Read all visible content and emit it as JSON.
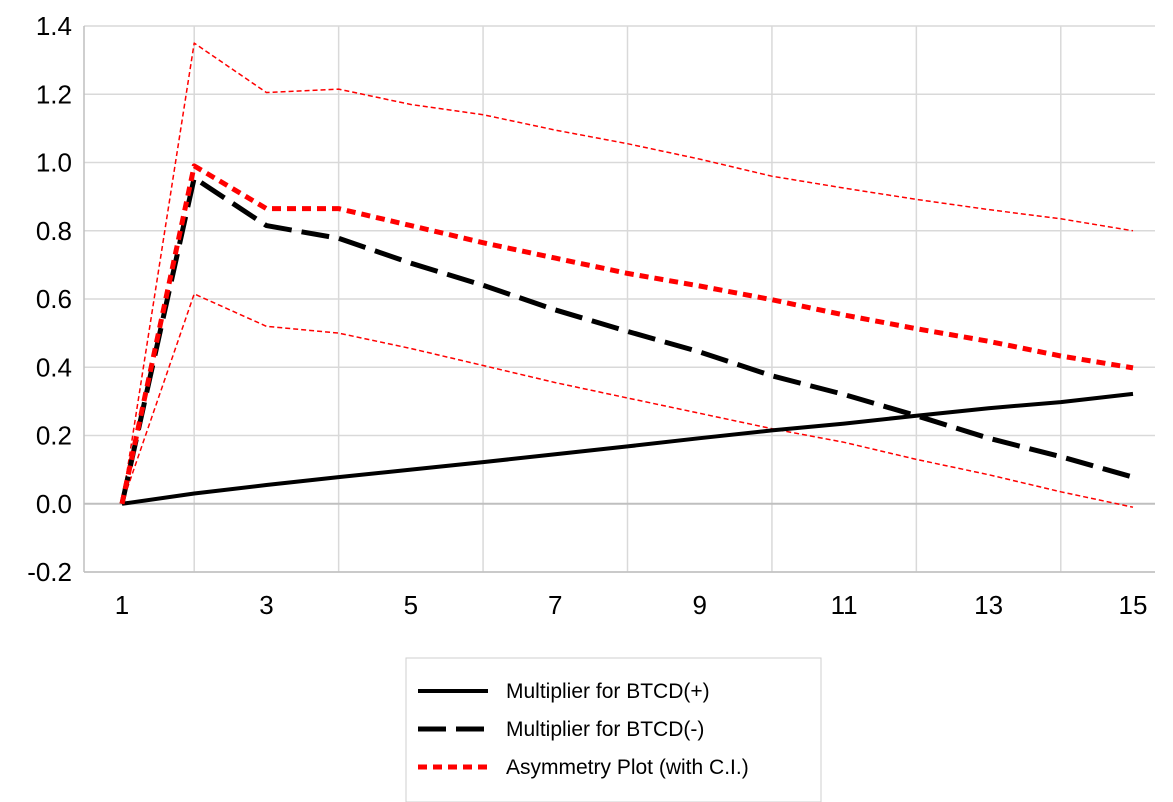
{
  "chart_data": {
    "type": "line",
    "title": "",
    "xlabel": "",
    "ylabel": "",
    "x": [
      1,
      2,
      3,
      4,
      5,
      6,
      7,
      8,
      9,
      10,
      11,
      12,
      13,
      14,
      15
    ],
    "x_ticks": [
      "1",
      "3",
      "5",
      "7",
      "9",
      "11",
      "13",
      "15"
    ],
    "y_ticks": [
      "-0.2",
      "0.0",
      "0.2",
      "0.4",
      "0.6",
      "0.8",
      "1.0",
      "1.2",
      "1.4"
    ],
    "xlim": [
      1,
      15
    ],
    "ylim": [
      -0.2,
      1.4
    ],
    "grid": true,
    "legend_position": "bottom-center",
    "legend": [
      "Multiplier for BTCD(+)",
      "Multiplier for BTCD(-)",
      "Asymmetry Plot (with C.I.)"
    ],
    "series": [
      {
        "name": "Multiplier for BTCD(+)",
        "style": "solid",
        "color": "#000000",
        "values": [
          0.0,
          0.03,
          0.055,
          0.078,
          0.1,
          0.122,
          0.145,
          0.168,
          0.192,
          0.215,
          0.235,
          0.258,
          0.28,
          0.298,
          0.322
        ]
      },
      {
        "name": "Multiplier for BTCD(-)",
        "style": "long-dash",
        "color": "#000000",
        "values": [
          0.0,
          0.955,
          0.815,
          0.778,
          0.705,
          0.64,
          0.568,
          0.505,
          0.445,
          0.375,
          0.32,
          0.258,
          0.192,
          0.138,
          0.078
        ]
      },
      {
        "name": "Asymmetry Plot (with C.I.)",
        "style": "dash",
        "color": "#ff0000",
        "values": [
          0.0,
          0.99,
          0.865,
          0.865,
          0.815,
          0.765,
          0.72,
          0.675,
          0.638,
          0.598,
          0.553,
          0.513,
          0.476,
          0.433,
          0.398
        ]
      },
      {
        "role": "upper_ci",
        "style": "thin-dash",
        "color": "#ff0000",
        "values": [
          0.0,
          1.35,
          1.205,
          1.215,
          1.17,
          1.14,
          1.095,
          1.055,
          1.01,
          0.96,
          0.925,
          0.892,
          0.862,
          0.835,
          0.8
        ]
      },
      {
        "role": "lower_ci",
        "style": "thin-dash",
        "color": "#ff0000",
        "values": [
          0.0,
          0.615,
          0.52,
          0.5,
          0.455,
          0.405,
          0.355,
          0.31,
          0.265,
          0.22,
          0.18,
          0.13,
          0.085,
          0.035,
          -0.01
        ]
      }
    ]
  }
}
